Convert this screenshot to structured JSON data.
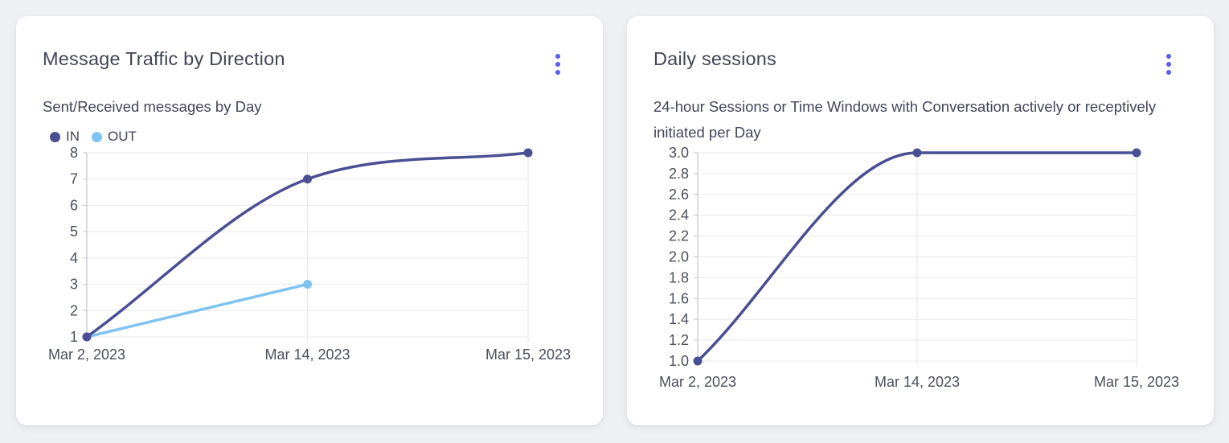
{
  "page": {
    "background": "#eff0f3",
    "card_background": "#ffffff"
  },
  "accent": {
    "menu_dots": "#5a5af2",
    "axis_text": "#4a4f5e",
    "gridline": "#e8e9ed",
    "axis_line": "#c3c6ce"
  },
  "cards": [
    {
      "title": "Message Traffic by Direction",
      "subtitle": "Sent/Received messages by Day",
      "menu_icon": "kebab-menu-icon"
    },
    {
      "title": "Daily sessions",
      "subtitle": "24-hour Sessions or Time Windows with Conversation actively or receptively initiated per Day",
      "menu_icon": "kebab-menu-icon"
    }
  ],
  "chart_data": [
    {
      "type": "line",
      "title": "Message Traffic by Direction",
      "subtitle": "Sent/Received messages by Day",
      "categories": [
        "Mar 2, 2023",
        "Mar 14, 2023",
        "Mar 15, 2023"
      ],
      "series": [
        {
          "name": "IN",
          "color": "#4a4f93",
          "values": [
            1,
            7,
            8
          ]
        },
        {
          "name": "OUT",
          "color": "#7fc3f1",
          "values": [
            1,
            3,
            null
          ]
        }
      ],
      "ylim": [
        1,
        8
      ],
      "yticks": [
        "1",
        "2",
        "3",
        "4",
        "5",
        "6",
        "7",
        "8"
      ],
      "xlabel": "",
      "ylabel": "",
      "legend": true,
      "legend_position": "top-left",
      "grid": true,
      "curve": "monotone"
    },
    {
      "type": "line",
      "title": "Daily sessions",
      "subtitle": "24-hour Sessions or Time Windows with Conversation actively or receptively initiated per Day",
      "categories": [
        "Mar 2, 2023",
        "Mar 14, 2023",
        "Mar 15, 2023"
      ],
      "series": [
        {
          "name": "Daily sessions",
          "color": "#4a4f93",
          "values": [
            1.0,
            3.0,
            3.0
          ]
        }
      ],
      "ylim": [
        1.0,
        3.0
      ],
      "yticks": [
        "1.0",
        "1.2",
        "1.4",
        "1.6",
        "1.8",
        "2.0",
        "2.2",
        "2.4",
        "2.6",
        "2.8",
        "3.0"
      ],
      "xlabel": "",
      "ylabel": "",
      "legend": false,
      "grid": true,
      "curve": "monotone"
    }
  ]
}
